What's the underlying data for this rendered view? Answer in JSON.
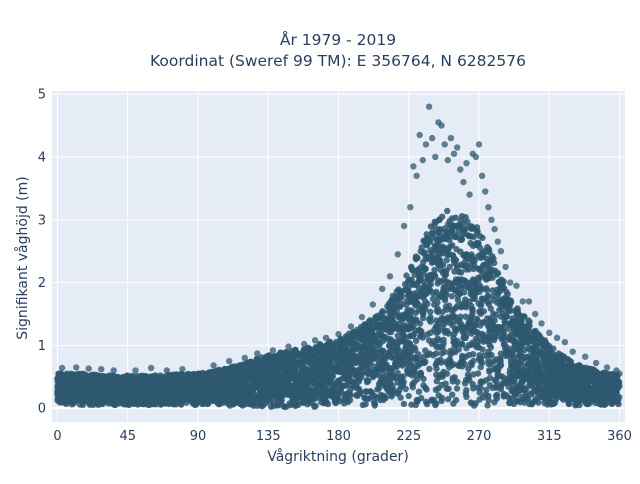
{
  "chart_data": {
    "type": "scatter",
    "title_line1": "År 1979 - 2019",
    "title_line2": "Koordinat (Sweref 99 TM): E 356764, N 6282576",
    "xlabel": "Vågriktning (grader)",
    "ylabel": "Signifikant våghöjd (m)",
    "xlim": [
      -3.5,
      363.5
    ],
    "ylim": [
      -0.22,
      5.05
    ],
    "xticks": [
      0,
      45,
      90,
      135,
      180,
      225,
      270,
      315,
      360
    ],
    "yticks": [
      0,
      1,
      2,
      3,
      4,
      5
    ],
    "grid": true,
    "marker_color": "#2e5870",
    "background_color": "#e5ecf6",
    "envelope": {
      "x": [
        0,
        15,
        30,
        45,
        60,
        75,
        90,
        105,
        120,
        135,
        150,
        165,
        180,
        195,
        210,
        220,
        230,
        240,
        250,
        260,
        270,
        280,
        290,
        300,
        315,
        330,
        345,
        360
      ],
      "min": [
        0.05,
        0.05,
        0.05,
        0.05,
        0.05,
        0.05,
        0.05,
        0.04,
        0.03,
        0.02,
        0.02,
        0.02,
        0.03,
        0.03,
        0.03,
        0.03,
        0.03,
        0.03,
        0.03,
        0.03,
        0.03,
        0.03,
        0.03,
        0.03,
        0.04,
        0.04,
        0.05,
        0.05
      ],
      "max": [
        0.55,
        0.55,
        0.52,
        0.52,
        0.52,
        0.54,
        0.55,
        0.62,
        0.72,
        0.85,
        0.92,
        1.0,
        1.1,
        1.3,
        1.6,
        2.0,
        2.45,
        2.95,
        3.15,
        3.1,
        2.85,
        2.35,
        1.8,
        1.45,
        1.0,
        0.72,
        0.6,
        0.52
      ]
    },
    "outliers": [
      [
        3,
        0.64
      ],
      [
        12,
        0.65
      ],
      [
        20,
        0.63
      ],
      [
        28,
        0.62
      ],
      [
        36,
        0.6
      ],
      [
        50,
        0.6
      ],
      [
        60,
        0.64
      ],
      [
        70,
        0.6
      ],
      [
        80,
        0.62
      ],
      [
        100,
        0.68
      ],
      [
        110,
        0.75
      ],
      [
        120,
        0.8
      ],
      [
        128,
        0.87
      ],
      [
        138,
        0.92
      ],
      [
        148,
        0.98
      ],
      [
        158,
        1.02
      ],
      [
        165,
        1.08
      ],
      [
        172,
        1.12
      ],
      [
        180,
        1.18
      ],
      [
        188,
        1.3
      ],
      [
        195,
        1.45
      ],
      [
        202,
        1.65
      ],
      [
        208,
        1.9
      ],
      [
        213,
        2.1
      ],
      [
        218,
        2.45
      ],
      [
        222,
        2.9
      ],
      [
        226,
        3.2
      ],
      [
        228,
        3.85
      ],
      [
        230,
        3.7
      ],
      [
        232,
        4.35
      ],
      [
        234,
        3.95
      ],
      [
        236,
        4.2
      ],
      [
        238,
        4.8
      ],
      [
        240,
        4.3
      ],
      [
        242,
        4.0
      ],
      [
        244,
        4.55
      ],
      [
        246,
        4.5
      ],
      [
        248,
        4.2
      ],
      [
        250,
        3.95
      ],
      [
        252,
        4.3
      ],
      [
        254,
        4.05
      ],
      [
        256,
        4.15
      ],
      [
        258,
        3.8
      ],
      [
        260,
        3.6
      ],
      [
        262,
        3.9
      ],
      [
        264,
        3.4
      ],
      [
        266,
        4.05
      ],
      [
        268,
        4.0
      ],
      [
        270,
        4.2
      ],
      [
        272,
        3.7
      ],
      [
        274,
        3.45
      ],
      [
        276,
        3.2
      ],
      [
        278,
        3.0
      ],
      [
        280,
        2.85
      ],
      [
        282,
        2.65
      ],
      [
        284,
        2.5
      ],
      [
        287,
        2.25
      ],
      [
        290,
        2.0
      ],
      [
        294,
        1.95
      ],
      [
        298,
        1.7
      ],
      [
        302,
        1.7
      ],
      [
        306,
        1.5
      ],
      [
        310,
        1.35
      ],
      [
        315,
        1.2
      ],
      [
        320,
        1.12
      ],
      [
        325,
        1.05
      ],
      [
        330,
        0.9
      ],
      [
        338,
        0.82
      ],
      [
        345,
        0.72
      ],
      [
        352,
        0.65
      ],
      [
        358,
        0.6
      ],
      [
        360,
        0.55
      ]
    ]
  }
}
